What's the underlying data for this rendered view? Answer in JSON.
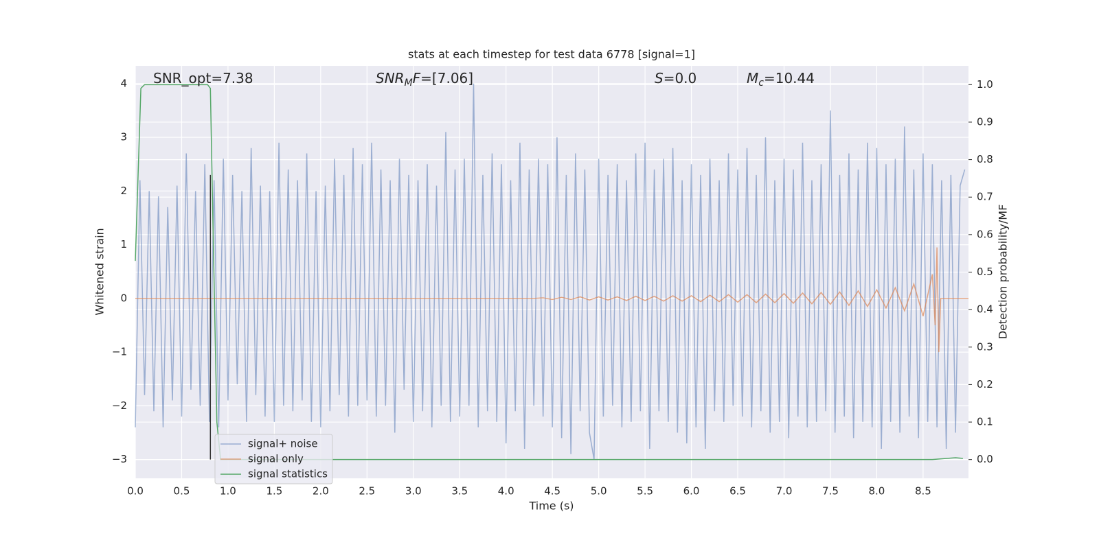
{
  "chart_data": {
    "type": "line",
    "title": "stats at each timestep for test data 6778 [signal=1]",
    "xlabel": "Time (s)",
    "ylabel": "Whitened strain",
    "y2label": "Detection probability/MF",
    "xlim": [
      0,
      8.99
    ],
    "ylim": [
      -3.35,
      4.33
    ],
    "y2lim": [
      -0.05,
      1.05
    ],
    "xticks": [
      {
        "value": 0,
        "label": "0.0"
      },
      0.5,
      {
        "value": 1,
        "label": "1.0"
      },
      1.5,
      {
        "value": 2,
        "label": "2.0"
      },
      2.5,
      {
        "value": 3,
        "label": "3.0"
      },
      3.5,
      {
        "value": 4,
        "label": "4.0"
      },
      4.5,
      {
        "value": 5,
        "label": "5.0"
      },
      5.5,
      {
        "value": 6,
        "label": "6.0"
      },
      6.5,
      {
        "value": 7,
        "label": "7.0"
      },
      7.5,
      {
        "value": 8,
        "label": "8.0"
      },
      8.5
    ],
    "yticks": [
      {
        "value": -3,
        "label": "−3"
      },
      {
        "value": -2,
        "label": "−2"
      },
      {
        "value": -1,
        "label": "−1"
      },
      0,
      1,
      2,
      3,
      4
    ],
    "y2ticks": [
      {
        "value": 0,
        "label": "0.0"
      },
      0.1,
      0.2,
      0.3,
      0.4,
      0.5,
      0.6,
      0.7,
      0.8,
      0.9,
      {
        "value": 1,
        "label": "1.0"
      }
    ],
    "grid": true,
    "background": "#eaeaf2",
    "legend_loc": "lower left",
    "annotations": [
      [
        {
          "text": "SNR_opt=7.38"
        }
      ],
      [
        {
          "text": "SNR",
          "style": "italic"
        },
        {
          "text": "M",
          "style": "italic-sub"
        },
        {
          "text": "F",
          "style": "italic"
        },
        {
          "text": "=[7.06]"
        }
      ],
      [
        {
          "text": "S",
          "style": "italic"
        },
        {
          "text": "=0.0"
        }
      ],
      [
        {
          "text": "M",
          "style": "italic"
        },
        {
          "text": "c",
          "style": "italic-sub"
        },
        {
          "text": "=10.44"
        }
      ]
    ],
    "vline": {
      "x": 0.81,
      "ymin": -3,
      "ymax": 2.3,
      "color": "#333333"
    },
    "series": [
      {
        "name": "signal+ noise",
        "color": "#4c72b0",
        "alpha": 0.5,
        "x": [
          0,
          0.05,
          0.1,
          0.15,
          0.2,
          0.25,
          0.3,
          0.35,
          0.4,
          0.45,
          0.5,
          0.55,
          0.6,
          0.65,
          0.7,
          0.75,
          0.8,
          0.85,
          0.9,
          0.95,
          1,
          1.05,
          1.1,
          1.15,
          1.2,
          1.25,
          1.3,
          1.35,
          1.4,
          1.45,
          1.5,
          1.55,
          1.6,
          1.65,
          1.7,
          1.75,
          1.8,
          1.85,
          1.9,
          1.95,
          2,
          2.05,
          2.1,
          2.15,
          2.2,
          2.25,
          2.3,
          2.35,
          2.4,
          2.45,
          2.5,
          2.55,
          2.6,
          2.65,
          2.7,
          2.75,
          2.8,
          2.85,
          2.9,
          2.95,
          3,
          3.05,
          3.1,
          3.15,
          3.2,
          3.25,
          3.3,
          3.35,
          3.4,
          3.45,
          3.5,
          3.55,
          3.6,
          3.65,
          3.7,
          3.75,
          3.8,
          3.85,
          3.9,
          3.95,
          4,
          4.05,
          4.1,
          4.15,
          4.2,
          4.25,
          4.3,
          4.35,
          4.4,
          4.45,
          4.5,
          4.55,
          4.6,
          4.65,
          4.7,
          4.75,
          4.8,
          4.85,
          4.9,
          4.95,
          5,
          5.05,
          5.1,
          5.15,
          5.2,
          5.25,
          5.3,
          5.35,
          5.4,
          5.45,
          5.5,
          5.55,
          5.6,
          5.65,
          5.7,
          5.75,
          5.8,
          5.85,
          5.9,
          5.95,
          6,
          6.05,
          6.1,
          6.15,
          6.2,
          6.25,
          6.3,
          6.35,
          6.4,
          6.45,
          6.5,
          6.55,
          6.6,
          6.65,
          6.7,
          6.75,
          6.8,
          6.85,
          6.9,
          6.95,
          7,
          7.05,
          7.1,
          7.15,
          7.2,
          7.25,
          7.3,
          7.35,
          7.4,
          7.45,
          7.5,
          7.55,
          7.6,
          7.65,
          7.7,
          7.75,
          7.8,
          7.85,
          7.9,
          7.95,
          8,
          8.05,
          8.1,
          8.15,
          8.2,
          8.25,
          8.3,
          8.35,
          8.4,
          8.45,
          8.5,
          8.55,
          8.6,
          8.65,
          8.7,
          8.75,
          8.8,
          8.85,
          8.9,
          8.95
        ],
        "values": [
          -2.4,
          2.2,
          -1.8,
          2.0,
          -2.1,
          1.9,
          -2.4,
          1.7,
          -1.9,
          2.1,
          -2.2,
          2.7,
          -1.7,
          2.0,
          -2.0,
          2.5,
          -2.3,
          2.2,
          -2.4,
          2.6,
          -1.9,
          2.3,
          -1.6,
          2.0,
          -2.3,
          2.8,
          -1.8,
          2.1,
          -2.2,
          2.0,
          -2.3,
          2.9,
          -2.0,
          2.4,
          -2.1,
          2.2,
          -1.9,
          2.7,
          -2.3,
          2.0,
          -2.4,
          2.1,
          -2.1,
          2.6,
          -1.8,
          2.3,
          -2.2,
          2.8,
          -2.0,
          2.5,
          -1.9,
          2.9,
          -2.2,
          2.4,
          -2.0,
          2.2,
          -2.5,
          2.6,
          -1.7,
          2.3,
          -2.3,
          2.2,
          -2.1,
          2.5,
          -2.4,
          2.1,
          -2.0,
          3.1,
          -2.3,
          2.4,
          -2.2,
          2.6,
          -2.0,
          4.0,
          -2.4,
          2.3,
          -2.1,
          2.7,
          -2.3,
          2.5,
          -2.7,
          2.2,
          -2.1,
          2.9,
          -2.8,
          2.4,
          -2.0,
          2.6,
          -2.2,
          2.5,
          -2.4,
          3.0,
          -2.6,
          2.3,
          -2.9,
          2.7,
          -2.1,
          2.4,
          -2.5,
          -3.0,
          2.6,
          -2.2,
          2.3,
          -2.0,
          2.5,
          -2.4,
          2.2,
          -2.3,
          2.7,
          -2.1,
          2.9,
          -2.8,
          2.4,
          -2.1,
          2.6,
          -2.3,
          2.8,
          -2.5,
          2.2,
          -2.7,
          2.5,
          -2.4,
          2.3,
          -2.8,
          2.6,
          -2.1,
          2.2,
          -2.3,
          2.7,
          -2.0,
          2.4,
          -2.2,
          2.8,
          -2.4,
          2.3,
          -2.1,
          3.0,
          -2.5,
          2.2,
          -2.3,
          2.6,
          -2.6,
          2.4,
          -2.2,
          2.9,
          -2.4,
          2.2,
          -2.3,
          2.5,
          -2.1,
          3.5,
          -2.5,
          2.3,
          -2.2,
          2.7,
          -2.6,
          2.4,
          -2.3,
          2.9,
          -2.4,
          2.8,
          -2.8,
          2.5,
          -2.3,
          2.6,
          -2.5,
          3.2,
          -2.2,
          2.4,
          -2.6,
          2.7,
          -2.3,
          2.5,
          -2.4,
          2.2,
          -2.8,
          2.3,
          -2.5,
          2.1,
          2.4
        ]
      },
      {
        "name": "signal only",
        "color": "#dd8452",
        "alpha": 0.7,
        "x": [
          0,
          4.3,
          4.4,
          4.5,
          4.6,
          4.7,
          4.8,
          4.9,
          5,
          5.1,
          5.2,
          5.3,
          5.4,
          5.5,
          5.6,
          5.7,
          5.8,
          5.9,
          6,
          6.1,
          6.2,
          6.3,
          6.4,
          6.5,
          6.6,
          6.7,
          6.8,
          6.9,
          7,
          7.1,
          7.2,
          7.3,
          7.4,
          7.5,
          7.6,
          7.7,
          7.8,
          7.9,
          8,
          8.1,
          8.2,
          8.3,
          8.4,
          8.5,
          8.6,
          8.63,
          8.65,
          8.67,
          8.69,
          8.99
        ],
        "values": [
          0,
          0,
          0.01,
          -0.02,
          0.02,
          -0.02,
          0.03,
          -0.03,
          0.03,
          -0.03,
          0.03,
          -0.04,
          0.04,
          -0.04,
          0.04,
          -0.05,
          0.05,
          -0.05,
          0.05,
          -0.06,
          0.06,
          -0.06,
          0.07,
          -0.07,
          0.07,
          -0.08,
          0.08,
          -0.08,
          0.09,
          -0.09,
          0.1,
          -0.1,
          0.11,
          -0.11,
          0.12,
          -0.13,
          0.14,
          -0.15,
          0.16,
          -0.18,
          0.2,
          -0.23,
          0.27,
          -0.33,
          0.45,
          -0.5,
          0.95,
          -1.0,
          0,
          0
        ]
      },
      {
        "name": "signal statistics",
        "color": "#55a868",
        "alpha": 1,
        "axis": "y2",
        "x": [
          0,
          0.06,
          0.1,
          0.2,
          0.78,
          0.81,
          0.84,
          0.88,
          0.92,
          1.0,
          8.6,
          8.85,
          8.93
        ],
        "values": [
          0.53,
          0.99,
          1.0,
          1.0,
          1.0,
          0.99,
          0.6,
          0.1,
          0.0,
          0.0,
          0.0,
          0.005,
          0.003
        ]
      }
    ]
  }
}
